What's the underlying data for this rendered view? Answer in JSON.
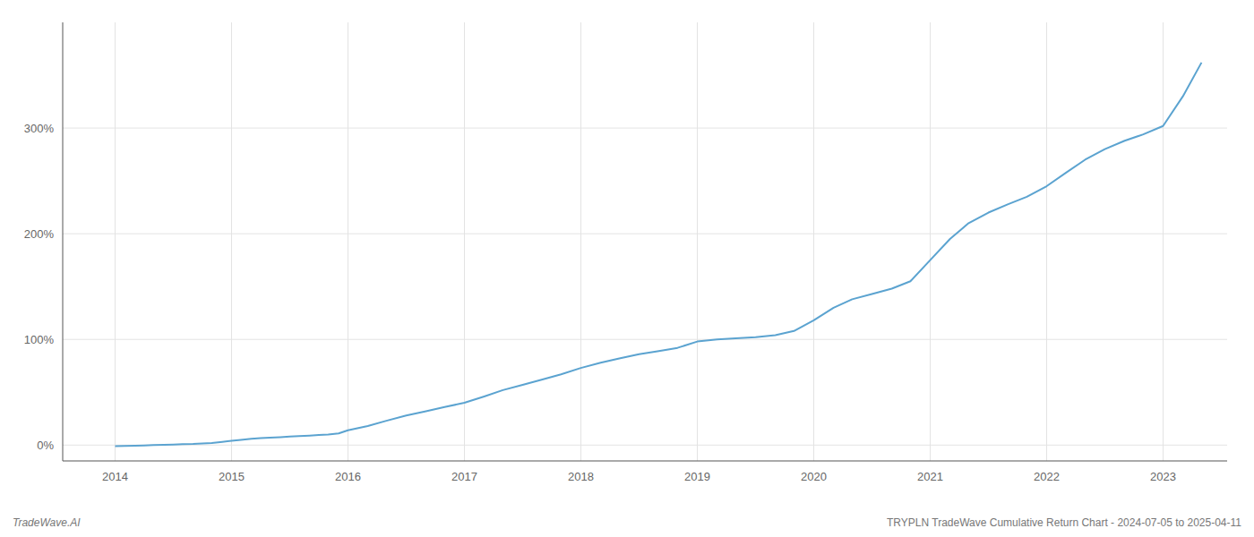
{
  "chart_data": {
    "type": "line",
    "title": "TRYPLN TradeWave Cumulative Return Chart - 2024-07-05 to 2025-04-11",
    "annotations": [
      "TradeWave.AI"
    ],
    "color": "#5ba3d0",
    "grid": true,
    "x": [
      2014.0,
      2014.08,
      2014.17,
      2014.25,
      2014.33,
      2014.42,
      2014.5,
      2014.58,
      2014.67,
      2014.75,
      2014.83,
      2014.92,
      2015.0,
      2015.08,
      2015.17,
      2015.25,
      2015.33,
      2015.42,
      2015.5,
      2015.58,
      2015.67,
      2015.75,
      2015.83,
      2015.92,
      2016.0,
      2016.17,
      2016.33,
      2016.5,
      2016.67,
      2016.83,
      2017.0,
      2017.17,
      2017.33,
      2017.5,
      2017.67,
      2017.83,
      2018.0,
      2018.17,
      2018.33,
      2018.5,
      2018.67,
      2018.83,
      2019.0,
      2019.17,
      2019.33,
      2019.5,
      2019.67,
      2019.83,
      2020.0,
      2020.17,
      2020.33,
      2020.5,
      2020.67,
      2020.83,
      2021.0,
      2021.17,
      2021.33,
      2021.5,
      2021.67,
      2021.83,
      2022.0,
      2022.17,
      2022.33,
      2022.5,
      2022.67,
      2022.83,
      2023.0,
      2023.17,
      2023.33
    ],
    "values": [
      -1,
      -0.8,
      -0.5,
      -0.3,
      0,
      0.3,
      0.5,
      0.8,
      1,
      1.5,
      2,
      3,
      4,
      5,
      6,
      6.5,
      7,
      7.5,
      8,
      8.5,
      9,
      9.5,
      10,
      11,
      14,
      18,
      23,
      28,
      32,
      36,
      40,
      46,
      52,
      57,
      62,
      67,
      73,
      78,
      82,
      86,
      89,
      92,
      98,
      100,
      101,
      102,
      104,
      108,
      118,
      130,
      138,
      143,
      148,
      155,
      175,
      195,
      210,
      220,
      228,
      235,
      245,
      258,
      270,
      280,
      288,
      294,
      302,
      330,
      362
    ],
    "xlim": [
      2013.55,
      2023.55
    ],
    "ylim": [
      -15,
      400
    ],
    "xticks": [
      2014,
      2015,
      2016,
      2017,
      2018,
      2019,
      2020,
      2021,
      2022,
      2023
    ],
    "yticks": [
      {
        "value": 0,
        "label": "0%"
      },
      {
        "value": 100,
        "label": "100%"
      },
      {
        "value": 200,
        "label": "200%"
      },
      {
        "value": 300,
        "label": "300%"
      }
    ]
  }
}
